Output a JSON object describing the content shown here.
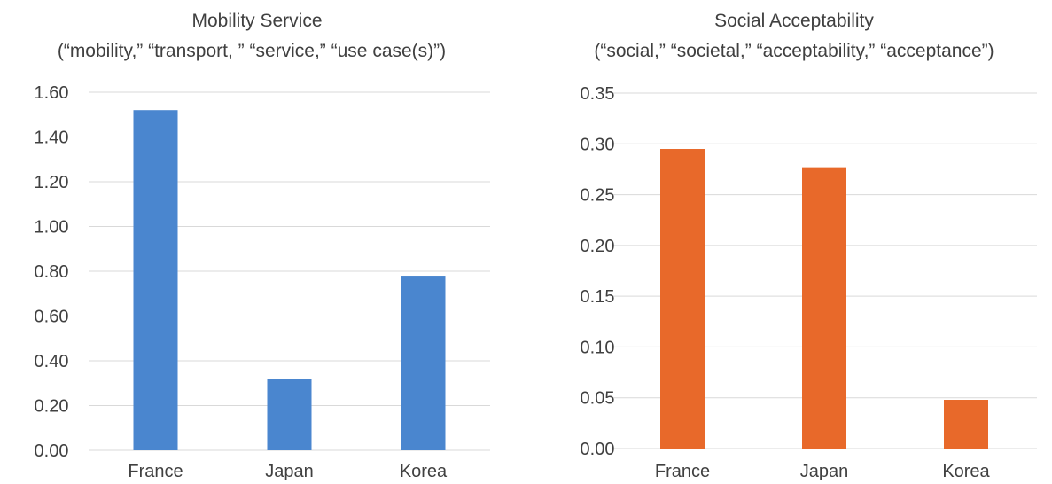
{
  "chart_data": [
    {
      "type": "bar",
      "title": "Mobility Service",
      "subtitle": "(“mobility,” “transport, ” “service,” “use case(s)”)",
      "categories": [
        "France",
        "Japan",
        "Korea"
      ],
      "values": [
        1.52,
        0.32,
        0.78
      ],
      "ylim": [
        0,
        1.6
      ],
      "yticks": [
        "0.00",
        "0.20",
        "0.40",
        "0.60",
        "0.80",
        "1.00",
        "1.20",
        "1.40",
        "1.60"
      ],
      "grid": true,
      "color": "#4a86cf"
    },
    {
      "type": "bar",
      "title": "Social Acceptability",
      "subtitle": "(“social,” “societal,” “acceptability,” “acceptance”)",
      "categories": [
        "France",
        "Japan",
        "Korea"
      ],
      "values": [
        0.295,
        0.277,
        0.048
      ],
      "ylim": [
        0,
        0.35
      ],
      "yticks": [
        "0.00",
        "0.05",
        "0.10",
        "0.15",
        "0.20",
        "0.25",
        "0.30",
        "0.35"
      ],
      "grid": true,
      "color": "#e8692a"
    }
  ]
}
